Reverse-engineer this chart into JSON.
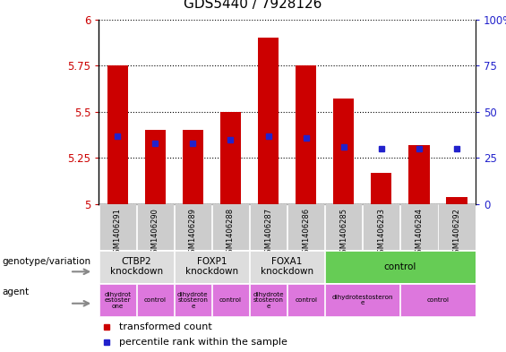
{
  "title": "GDS5440 / 7928126",
  "samples": [
    "GSM1406291",
    "GSM1406290",
    "GSM1406289",
    "GSM1406288",
    "GSM1406287",
    "GSM1406286",
    "GSM1406285",
    "GSM1406293",
    "GSM1406284",
    "GSM1406292"
  ],
  "transformed_count": [
    5.75,
    5.4,
    5.4,
    5.5,
    5.9,
    5.75,
    5.57,
    5.17,
    5.32,
    5.04
  ],
  "percentile_rank": [
    37,
    33,
    33,
    35,
    37,
    36,
    31,
    30,
    30,
    30
  ],
  "ylim": [
    5.0,
    6.0
  ],
  "y_ticks": [
    5.0,
    5.25,
    5.5,
    5.75,
    6.0
  ],
  "right_yticks": [
    0,
    25,
    50,
    75,
    100
  ],
  "bar_color": "#cc0000",
  "dot_color": "#2222cc",
  "genotype_groups": [
    {
      "label": "CTBP2\nknockdown",
      "start": 0,
      "end": 2,
      "color": "#dddddd"
    },
    {
      "label": "FOXP1\nknockdown",
      "start": 2,
      "end": 4,
      "color": "#dddddd"
    },
    {
      "label": "FOXA1\nknockdown",
      "start": 4,
      "end": 6,
      "color": "#dddddd"
    },
    {
      "label": "control",
      "start": 6,
      "end": 10,
      "color": "#66cc55"
    }
  ],
  "agent_groups": [
    {
      "label": "dihydrot\nestoster\none",
      "start": 0,
      "end": 1,
      "color": "#dd77dd"
    },
    {
      "label": "control",
      "start": 1,
      "end": 2,
      "color": "#dd77dd"
    },
    {
      "label": "dihydrote\nstosteron\ne",
      "start": 2,
      "end": 3,
      "color": "#dd77dd"
    },
    {
      "label": "control",
      "start": 3,
      "end": 4,
      "color": "#dd77dd"
    },
    {
      "label": "dihydrote\nstosteron\ne",
      "start": 4,
      "end": 5,
      "color": "#dd77dd"
    },
    {
      "label": "control",
      "start": 5,
      "end": 6,
      "color": "#dd77dd"
    },
    {
      "label": "dihydrotestosteron\ne",
      "start": 6,
      "end": 8,
      "color": "#dd77dd"
    },
    {
      "label": "control",
      "start": 8,
      "end": 10,
      "color": "#dd77dd"
    }
  ],
  "ylabel_left_color": "#cc0000",
  "ylabel_right_color": "#2222cc",
  "legend_items": [
    {
      "label": "transformed count",
      "color": "#cc0000"
    },
    {
      "label": "percentile rank within the sample",
      "color": "#2222cc"
    }
  ],
  "sample_box_color": "#cccccc",
  "chart_bg": "#ffffff"
}
